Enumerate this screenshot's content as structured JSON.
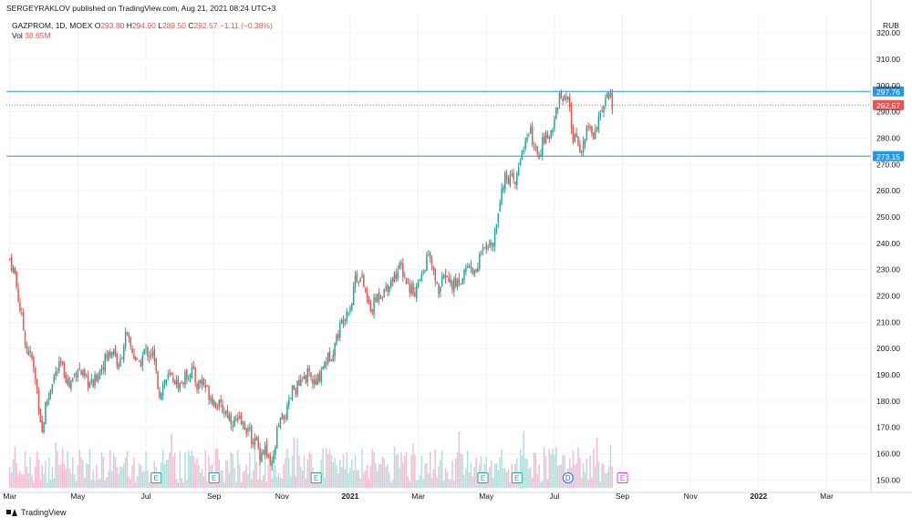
{
  "publisher_line": "SERGEYRAKLOV published on TradingView.com, Aug 21, 2021 08:24 UTC+3",
  "legend": {
    "symbol": "GAZPROM, 1D, MOEX",
    "open_label": "O",
    "open": "293.80",
    "high_label": "H",
    "high": "294.90",
    "low_label": "L",
    "low": "289.50",
    "close_label": "C",
    "close": "292.57",
    "change": "−1.11 (−0.38%)",
    "vol_label": "Vol",
    "vol": "38.65M"
  },
  "footer": {
    "brand": "TradingView"
  },
  "colors": {
    "up": "#26a69a",
    "down": "#ef5350",
    "line": "#2196f3",
    "vol_up": "#b2dfdb",
    "vol_down": "#f8bbd0",
    "grid": "#f0f3fa"
  },
  "chart_data": {
    "type": "candlestick",
    "title": "GAZPROM, 1D, MOEX",
    "currency": "RUB",
    "ylim": [
      147,
      327
    ],
    "y_ticks": [
      150,
      160,
      170,
      180,
      190,
      200,
      210,
      220,
      230,
      240,
      250,
      260,
      270,
      280,
      290,
      300,
      310,
      320
    ],
    "x_ticks": [
      "Mar",
      "May",
      "Jul",
      "Sep",
      "Nov",
      "2021",
      "Mar",
      "May",
      "Jul",
      "Sep",
      "Nov",
      "2022",
      "Mar"
    ],
    "x_tick_months": [
      0,
      2,
      4,
      6,
      8,
      10,
      12,
      14,
      16,
      18,
      20,
      22,
      24
    ],
    "x_range_months": [
      -0.1,
      25.3
    ],
    "last_data_month": 17.7,
    "horizontal_lines": [
      {
        "name": "resistance",
        "value": 297.76,
        "label": "297.76",
        "color": "#2196f3",
        "style": "solid"
      },
      {
        "name": "support",
        "value": 273.15,
        "label": "273.15",
        "color": "#2196f3",
        "style": "solid"
      },
      {
        "name": "last-price",
        "value": 292.57,
        "label": "292.57",
        "color": "#ef5350",
        "style": "dotted"
      }
    ],
    "price_path": [
      [
        0.0,
        234
      ],
      [
        0.15,
        228
      ],
      [
        0.3,
        215
      ],
      [
        0.5,
        200
      ],
      [
        0.65,
        196
      ],
      [
        0.8,
        184
      ],
      [
        0.95,
        168
      ],
      [
        1.05,
        178
      ],
      [
        1.25,
        188
      ],
      [
        1.5,
        194
      ],
      [
        1.75,
        186
      ],
      [
        2.0,
        193
      ],
      [
        2.2,
        188
      ],
      [
        2.45,
        186
      ],
      [
        2.6,
        191
      ],
      [
        2.85,
        197
      ],
      [
        3.05,
        200
      ],
      [
        3.2,
        192
      ],
      [
        3.4,
        205
      ],
      [
        3.6,
        199
      ],
      [
        3.8,
        193
      ],
      [
        3.95,
        199
      ],
      [
        4.2,
        198
      ],
      [
        4.3,
        190
      ],
      [
        4.4,
        183
      ],
      [
        4.55,
        188
      ],
      [
        4.75,
        189
      ],
      [
        5.0,
        186
      ],
      [
        5.2,
        190
      ],
      [
        5.35,
        192
      ],
      [
        5.5,
        186
      ],
      [
        5.65,
        188
      ],
      [
        5.8,
        184
      ],
      [
        6.0,
        180
      ],
      [
        6.15,
        178
      ],
      [
        6.35,
        176
      ],
      [
        6.5,
        173
      ],
      [
        6.7,
        172
      ],
      [
        6.95,
        170
      ],
      [
        7.1,
        166
      ],
      [
        7.25,
        164
      ],
      [
        7.35,
        160
      ],
      [
        7.5,
        162
      ],
      [
        7.65,
        154
      ],
      [
        7.75,
        158
      ],
      [
        7.85,
        168
      ],
      [
        7.95,
        172
      ],
      [
        8.15,
        176
      ],
      [
        8.3,
        184
      ],
      [
        8.5,
        186
      ],
      [
        8.75,
        190
      ],
      [
        9.0,
        186
      ],
      [
        9.2,
        194
      ],
      [
        9.45,
        198
      ],
      [
        9.65,
        206
      ],
      [
        9.8,
        212
      ],
      [
        10.05,
        218
      ],
      [
        10.15,
        228
      ],
      [
        10.35,
        226
      ],
      [
        10.6,
        214
      ],
      [
        10.8,
        220
      ],
      [
        11.0,
        222
      ],
      [
        11.3,
        228
      ],
      [
        11.5,
        231
      ],
      [
        11.7,
        224
      ],
      [
        11.9,
        222
      ],
      [
        12.1,
        227
      ],
      [
        12.3,
        236
      ],
      [
        12.45,
        228
      ],
      [
        12.6,
        222
      ],
      [
        12.8,
        228
      ],
      [
        13.0,
        224
      ],
      [
        13.25,
        226
      ],
      [
        13.45,
        232
      ],
      [
        13.65,
        229
      ],
      [
        13.85,
        236
      ],
      [
        14.05,
        238
      ],
      [
        14.25,
        244
      ],
      [
        14.45,
        262
      ],
      [
        14.6,
        266
      ],
      [
        14.85,
        262
      ],
      [
        15.05,
        276
      ],
      [
        15.3,
        282
      ],
      [
        15.5,
        272
      ],
      [
        15.7,
        280
      ],
      [
        15.85,
        280
      ],
      [
        16.0,
        288
      ],
      [
        16.15,
        296
      ],
      [
        16.25,
        294
      ],
      [
        16.4,
        294
      ],
      [
        16.55,
        280
      ],
      [
        16.8,
        276
      ],
      [
        17.0,
        285
      ],
      [
        17.15,
        281
      ],
      [
        17.3,
        288
      ],
      [
        17.45,
        290
      ],
      [
        17.55,
        298
      ],
      [
        17.62,
        296
      ],
      [
        17.7,
        292.57
      ]
    ],
    "events": [
      {
        "letter": "E",
        "month": 4.3,
        "kind": "earnings",
        "color": "#26a69a"
      },
      {
        "letter": "E",
        "month": 6.0,
        "kind": "earnings",
        "color": "#26a69a"
      },
      {
        "letter": "E",
        "month": 9.0,
        "kind": "earnings",
        "color": "#26a69a"
      },
      {
        "letter": "E",
        "month": 13.9,
        "kind": "earnings",
        "color": "#26a69a"
      },
      {
        "letter": "E",
        "month": 14.9,
        "kind": "earnings",
        "color": "#26a69a"
      },
      {
        "letter": "D",
        "month": 16.4,
        "kind": "dividend",
        "color": "#2962ff"
      },
      {
        "letter": "E",
        "month": 18.0,
        "kind": "earnings",
        "color": "#e040fb"
      }
    ]
  }
}
